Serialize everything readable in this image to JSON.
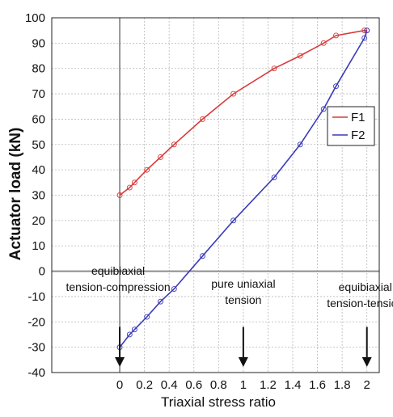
{
  "chart_data": {
    "type": "line",
    "xlabel": "Triaxial stress ratio",
    "ylabel": "Actuator load (kN)",
    "xlim": [
      -0.55,
      2.1
    ],
    "ylim": [
      -40,
      100
    ],
    "x_ticks": [
      0,
      0.2,
      0.4,
      0.6,
      0.8,
      1,
      1.2,
      1.4,
      1.6,
      1.8,
      2
    ],
    "x_tick_labels": [
      "0",
      "0.2",
      "0.4",
      "0.6",
      "0.8",
      "1",
      "1.2",
      "1.4",
      "1.6",
      "1.8",
      "2"
    ],
    "y_ticks": [
      -40,
      -30,
      -20,
      -10,
      0,
      10,
      20,
      30,
      40,
      50,
      60,
      70,
      80,
      90,
      100
    ],
    "y_tick_labels": [
      "-40",
      "-30",
      "-20",
      "-10",
      "0",
      "10",
      "20",
      "30",
      "40",
      "50",
      "60",
      "70",
      "80",
      "90",
      "100"
    ],
    "grid": "dotted",
    "legend_position": "right",
    "series": [
      {
        "name": "F1",
        "color": "#d93a3a",
        "x": [
          0,
          0.08,
          0.12,
          0.22,
          0.33,
          0.44,
          0.67,
          0.92,
          1.25,
          1.46,
          1.65,
          1.75,
          1.98,
          2.0
        ],
        "y": [
          30,
          33,
          35,
          40,
          45,
          50,
          60,
          70,
          80,
          85,
          90,
          93,
          95,
          95
        ]
      },
      {
        "name": "F2",
        "color": "#3a3ab8",
        "x": [
          0,
          0.08,
          0.12,
          0.22,
          0.33,
          0.44,
          0.67,
          0.92,
          1.25,
          1.46,
          1.65,
          1.75,
          1.98,
          2.0
        ],
        "y": [
          -30,
          -25,
          -23,
          -18,
          -12,
          -7,
          6,
          20,
          37,
          50,
          64,
          73,
          92,
          95
        ]
      }
    ],
    "annotations": [
      {
        "lines": [
          "equibiaxial",
          "tension-compression"
        ],
        "x": 0,
        "arrow_from": -22,
        "arrow_to": -37
      },
      {
        "lines": [
          "pure uniaxial",
          "tension"
        ],
        "x": 1,
        "arrow_from": -22,
        "arrow_to": -37
      },
      {
        "lines": [
          "equibiaxial",
          "tension-tension"
        ],
        "x": 2,
        "arrow_from": -22,
        "arrow_to": -37
      }
    ]
  }
}
